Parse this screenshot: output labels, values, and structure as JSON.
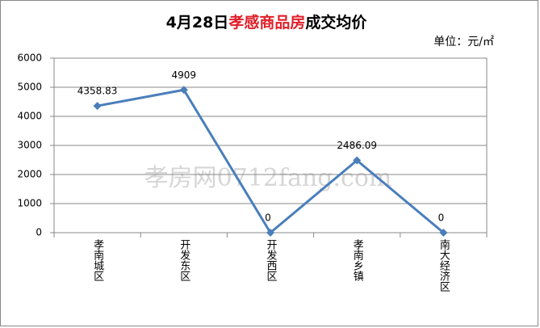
{
  "chart_data": {
    "type": "line",
    "title": [
      "4月28日",
      "孝感商品房",
      "成交均价"
    ],
    "unit_label": "单位：元/㎡",
    "watermark": "孝房网0712fang.com",
    "categories": [
      "孝南城区",
      "开发东区",
      "开发西区",
      "孝南乡镇",
      "南大经济区"
    ],
    "values": [
      4358.83,
      4909,
      0,
      2486.09,
      0
    ],
    "color": "#4a7ebb",
    "ylim": [
      0,
      6000
    ],
    "yticks": [
      0,
      1000,
      2000,
      3000,
      4000,
      5000,
      6000
    ],
    "grid": true
  }
}
